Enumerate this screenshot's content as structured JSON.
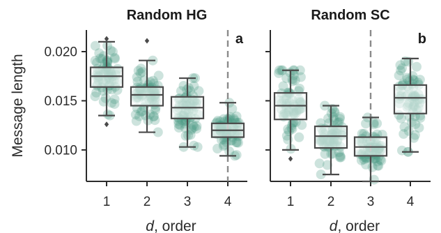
{
  "chart_data": [
    {
      "type": "box",
      "title": "Random HG",
      "panel_label": "a",
      "xlabel_italic": "d",
      "xlabel_rest": ", order",
      "ylabel": "Message length",
      "categories": [
        "1",
        "2",
        "3",
        "4"
      ],
      "ylim": [
        0.0068,
        0.0222
      ],
      "yticks": [
        "0.010",
        "0.015",
        "0.020"
      ],
      "ytick_values": [
        0.01,
        0.015,
        0.02
      ],
      "dashed_line_at": "4",
      "boxes": [
        {
          "category": "1",
          "whisker_low": 0.0135,
          "q1": 0.0164,
          "median": 0.0175,
          "q3": 0.0184,
          "whisker_high": 0.021,
          "outliers": [
            0.0213,
            0.0126
          ]
        },
        {
          "category": "2",
          "whisker_low": 0.0118,
          "q1": 0.0145,
          "median": 0.0156,
          "q3": 0.0164,
          "whisker_high": 0.0191,
          "outliers": [
            0.0211
          ]
        },
        {
          "category": "3",
          "whisker_low": 0.0103,
          "q1": 0.0132,
          "median": 0.0143,
          "q3": 0.0154,
          "whisker_high": 0.0173,
          "outliers": []
        },
        {
          "category": "4",
          "whisker_low": 0.0094,
          "q1": 0.0113,
          "median": 0.012,
          "q3": 0.0127,
          "whisker_high": 0.0148,
          "outliers": []
        }
      ]
    },
    {
      "type": "box",
      "title": "Random SC",
      "panel_label": "b",
      "xlabel_italic": "d",
      "xlabel_rest": ", order",
      "categories": [
        "1",
        "2",
        "3",
        "4"
      ],
      "ylim": [
        0.0068,
        0.0222
      ],
      "dashed_line_at": "3",
      "boxes": [
        {
          "category": "1",
          "whisker_low": 0.01,
          "q1": 0.0131,
          "median": 0.0145,
          "q3": 0.0158,
          "whisker_high": 0.0181,
          "outliers": [
            0.0091
          ]
        },
        {
          "category": "2",
          "whisker_low": 0.0075,
          "q1": 0.0102,
          "median": 0.0114,
          "q3": 0.0124,
          "whisker_high": 0.0145,
          "outliers": []
        },
        {
          "category": "3",
          "whisker_low": 0.0068,
          "q1": 0.0094,
          "median": 0.0103,
          "q3": 0.0113,
          "whisker_high": 0.0133,
          "outliers": []
        },
        {
          "category": "4",
          "whisker_low": 0.0098,
          "q1": 0.0137,
          "median": 0.0153,
          "q3": 0.0166,
          "whisker_high": 0.0193,
          "outliers": []
        }
      ]
    }
  ]
}
